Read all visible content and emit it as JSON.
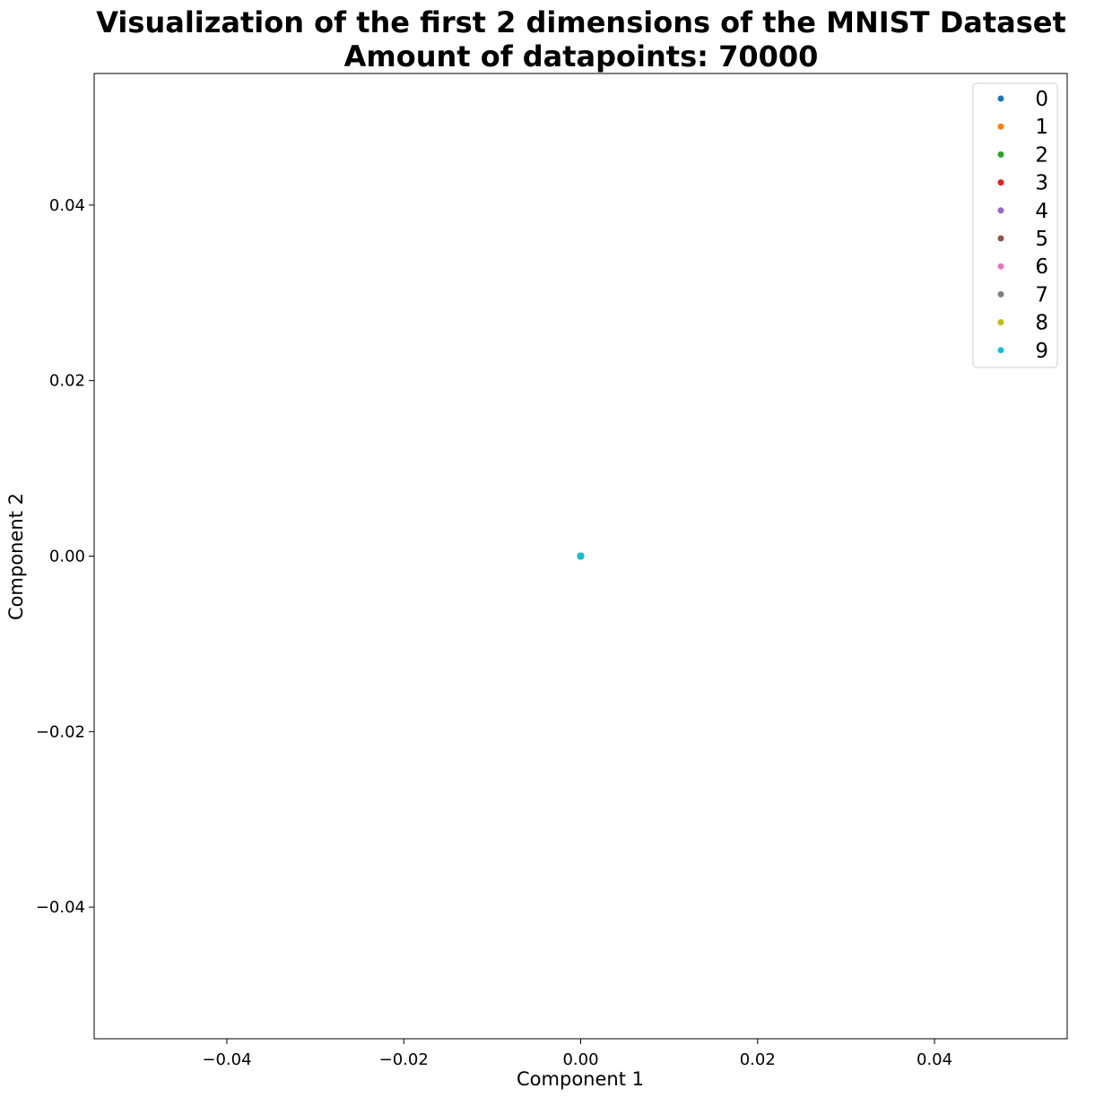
{
  "chart_data": {
    "type": "scatter",
    "title": "Visualization of the first 2 dimensions of the MNIST Dataset",
    "subtitle": "Amount of datapoints: 70000",
    "xlabel": "Component 1",
    "ylabel": "Component 2",
    "xlim": [
      -0.055,
      0.055
    ],
    "ylim": [
      -0.055,
      0.055
    ],
    "xticks": [
      -0.04,
      -0.02,
      0.0,
      0.02,
      0.04
    ],
    "yticks": [
      -0.04,
      -0.02,
      0.0,
      0.02,
      0.04
    ],
    "xtick_labels": [
      "−0.04",
      "−0.02",
      "0.00",
      "0.02",
      "0.04"
    ],
    "ytick_labels": [
      "−0.04",
      "−0.02",
      "0.00",
      "0.02",
      "0.04"
    ],
    "grid": false,
    "legend_position": "top-right",
    "series": [
      {
        "name": "0",
        "color": "#1f77b4",
        "points": [
          [
            0,
            0
          ]
        ]
      },
      {
        "name": "1",
        "color": "#ff7f0e",
        "points": [
          [
            0,
            0
          ]
        ]
      },
      {
        "name": "2",
        "color": "#2ca02c",
        "points": [
          [
            0,
            0
          ]
        ]
      },
      {
        "name": "3",
        "color": "#d62728",
        "points": [
          [
            0,
            0
          ]
        ]
      },
      {
        "name": "4",
        "color": "#9467bd",
        "points": [
          [
            0,
            0
          ]
        ]
      },
      {
        "name": "5",
        "color": "#8c564b",
        "points": [
          [
            0,
            0
          ]
        ]
      },
      {
        "name": "6",
        "color": "#e377c2",
        "points": [
          [
            0,
            0
          ]
        ]
      },
      {
        "name": "7",
        "color": "#7f7f7f",
        "points": [
          [
            0,
            0
          ]
        ]
      },
      {
        "name": "8",
        "color": "#bcbd22",
        "points": [
          [
            0,
            0
          ]
        ]
      },
      {
        "name": "9",
        "color": "#17becf",
        "points": [
          [
            0,
            0
          ]
        ]
      }
    ]
  }
}
